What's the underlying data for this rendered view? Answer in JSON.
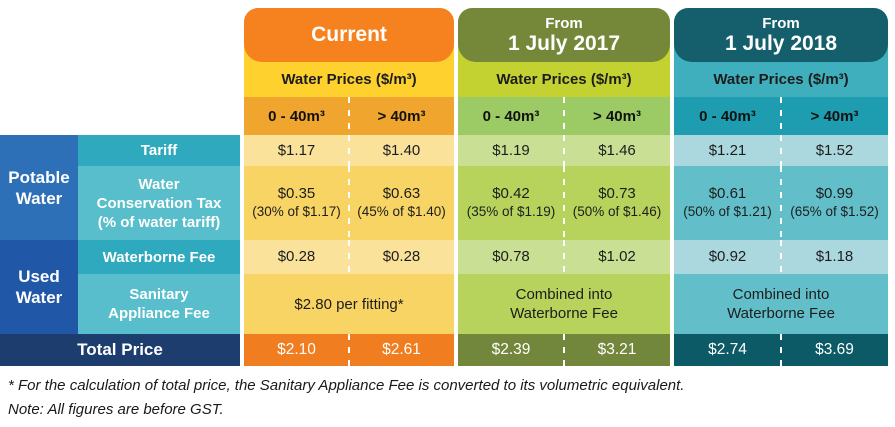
{
  "left": {
    "potable_lines": [
      "Potable",
      "Water"
    ],
    "used_lines": [
      "Used",
      "Water"
    ],
    "tariff_label": "Tariff",
    "wct_lines": [
      "Water",
      "Conservation Tax",
      "(% of water tariff)"
    ],
    "waterborne_label": "Waterborne Fee",
    "sanitary_lines": [
      "Sanitary",
      "Appliance Fee"
    ],
    "total_label": "Total Price"
  },
  "groups": [
    {
      "title_top": "",
      "title_main": "Current",
      "band_label": "Water Prices ($/m³)",
      "col1": "0 - 40m³",
      "col2": "> 40m³",
      "tariff": [
        "$1.17",
        "$1.40"
      ],
      "wct": [
        {
          "value": "$0.35",
          "pct": "(30% of $1.17)"
        },
        {
          "value": "$0.63",
          "pct": "(45% of $1.40)"
        }
      ],
      "waterborne": [
        "$0.28",
        "$0.28"
      ],
      "sanitary": "$2.80 per fitting*",
      "total": [
        "$2.10",
        "$2.61"
      ]
    },
    {
      "title_top": "From",
      "title_main": "1 July 2017",
      "band_label": "Water Prices ($/m³)",
      "col1": "0 - 40m³",
      "col2": "> 40m³",
      "tariff": [
        "$1.19",
        "$1.46"
      ],
      "wct": [
        {
          "value": "$0.42",
          "pct": "(35% of $1.19)"
        },
        {
          "value": "$0.73",
          "pct": "(50% of $1.46)"
        }
      ],
      "waterborne": [
        "$0.78",
        "$1.02"
      ],
      "sanitary": "Combined into Waterborne Fee",
      "total": [
        "$2.39",
        "$3.21"
      ]
    },
    {
      "title_top": "From",
      "title_main": "1 July 2018",
      "band_label": "Water Prices ($/m³)",
      "col1": "0 - 40m³",
      "col2": "> 40m³",
      "tariff": [
        "$1.21",
        "$1.52"
      ],
      "wct": [
        {
          "value": "$0.61",
          "pct": "(50% of $1.21)"
        },
        {
          "value": "$0.99",
          "pct": "(65% of $1.52)"
        }
      ],
      "waterborne": [
        "$0.92",
        "$1.18"
      ],
      "sanitary": "Combined into Waterborne Fee",
      "total": [
        "$2.74",
        "$3.69"
      ]
    }
  ],
  "footnotes": {
    "asterisk": "* For the calculation of total price, the Sanitary Appliance Fee is converted to its volumetric equivalent.",
    "gst": "Note: All figures are before GST."
  },
  "colors": {
    "current": {
      "header": "#F5821F",
      "band": "#FFD12F",
      "subheader": "#F0A62E",
      "row_light": "#FAE29B",
      "row_mid": "#F7D463",
      "total": "#F07D1F"
    },
    "from_1_july_2017": {
      "header": "#75883A",
      "band": "#C3D230",
      "subheader": "#9CCB66",
      "row_light": "#C9E094",
      "row_mid": "#B7D35C",
      "total": "#73873C"
    },
    "from_1_july_2018": {
      "header": "#145F6B",
      "band": "#3FAFBE",
      "subheader": "#1E9DB0",
      "row_light": "#ABD8DE",
      "row_mid": "#62BFCA",
      "total": "#0B5A66"
    },
    "left": {
      "potable_water": "#2E70B7",
      "used_water": "#2057A7",
      "row_label_dark": "#2FA9BD",
      "row_label_light": "#58BECB",
      "total_navy": "#1E3D6F"
    }
  },
  "chart_data": {
    "type": "table",
    "title": "Water Prices ($/m³)",
    "column_groups": [
      "Current",
      "From 1 July 2017",
      "From 1 July 2018"
    ],
    "columns_per_group": [
      "0 - 40m³",
      "> 40m³"
    ],
    "rows": [
      {
        "section": "Potable Water",
        "label": "Tariff",
        "current": [
          1.17,
          1.4
        ],
        "from_1_july_2017": [
          1.19,
          1.46
        ],
        "from_1_july_2018": [
          1.21,
          1.52
        ]
      },
      {
        "section": "Potable Water",
        "label": "Water Conservation Tax (% of water tariff)",
        "current": [
          0.35,
          0.63
        ],
        "current_pct_of_tariff": [
          30,
          45
        ],
        "from_1_july_2017": [
          0.42,
          0.73
        ],
        "from_1_july_2017_pct_of_tariff": [
          35,
          50
        ],
        "from_1_july_2018": [
          0.61,
          0.99
        ],
        "from_1_july_2018_pct_of_tariff": [
          50,
          65
        ]
      },
      {
        "section": "Used Water",
        "label": "Waterborne Fee",
        "current": [
          0.28,
          0.28
        ],
        "from_1_july_2017": [
          0.78,
          1.02
        ],
        "from_1_july_2018": [
          0.92,
          1.18
        ]
      },
      {
        "section": "Used Water",
        "label": "Sanitary Appliance Fee",
        "current": "$2.80 per fitting*",
        "from_1_july_2017": "Combined into Waterborne Fee",
        "from_1_july_2018": "Combined into Waterborne Fee"
      },
      {
        "section": "",
        "label": "Total Price",
        "current": [
          2.1,
          2.61
        ],
        "from_1_july_2017": [
          2.39,
          3.21
        ],
        "from_1_july_2018": [
          2.74,
          3.69
        ]
      }
    ],
    "notes": [
      "* For the calculation of total price, the Sanitary Appliance Fee is converted to its volumetric equivalent.",
      "Note: All figures are before GST."
    ]
  }
}
